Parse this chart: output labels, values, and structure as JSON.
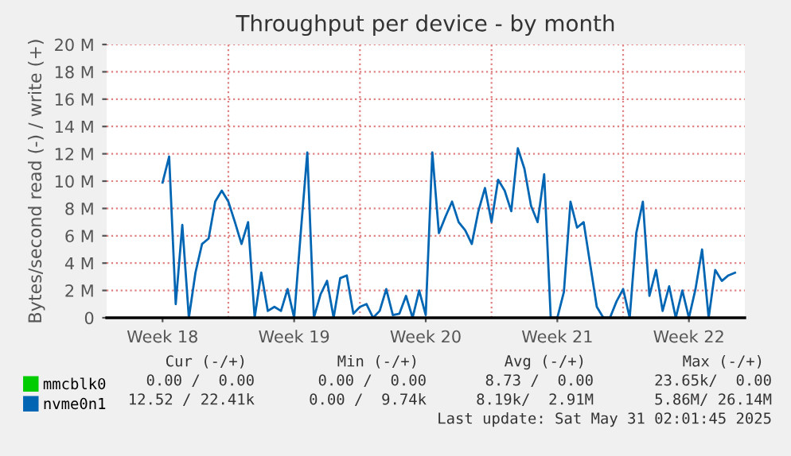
{
  "chart_data": {
    "type": "line",
    "title": "Throughput per device - by month",
    "ylabel": "Bytes/second read (-) / write (+)",
    "categories": [
      null,
      null,
      null,
      null,
      null,
      null,
      null,
      null,
      "Week 18",
      null,
      null,
      null,
      null,
      null,
      null,
      null,
      null,
      null,
      null,
      null,
      null,
      null,
      null,
      null,
      null,
      null,
      null,
      null,
      "Week 19",
      null,
      null,
      null,
      null,
      null,
      null,
      null,
      null,
      null,
      null,
      null,
      null,
      null,
      null,
      null,
      null,
      null,
      null,
      null,
      "Week 20",
      null,
      null,
      null,
      null,
      null,
      null,
      null,
      null,
      null,
      null,
      null,
      null,
      null,
      null,
      null,
      null,
      null,
      null,
      null,
      "Week 21",
      null,
      null,
      null,
      null,
      null,
      null,
      null,
      null,
      null,
      null,
      null,
      null,
      null,
      null,
      null,
      null,
      null,
      null,
      null,
      "Week 22",
      null,
      null,
      null,
      null,
      null,
      null,
      null,
      null
    ],
    "ylim": [
      0,
      20000000
    ],
    "yticks": [
      {
        "value": 0,
        "label": "0"
      },
      {
        "value": 2000000,
        "label": "2 M"
      },
      {
        "value": 4000000,
        "label": "4 M"
      },
      {
        "value": 6000000,
        "label": "6 M"
      },
      {
        "value": 8000000,
        "label": "8 M"
      },
      {
        "value": 10000000,
        "label": "10 M"
      },
      {
        "value": 12000000,
        "label": "12 M"
      },
      {
        "value": 14000000,
        "label": "14 M"
      },
      {
        "value": 16000000,
        "label": "16 M"
      },
      {
        "value": 18000000,
        "label": "18 M"
      },
      {
        "value": 20000000,
        "label": "20 M"
      }
    ],
    "grid": true,
    "legend": "bottom",
    "series": [
      {
        "name": "mmcblk0",
        "color": "#00cc00",
        "values": [
          null,
          null,
          null,
          null,
          null,
          null,
          null,
          null,
          null,
          null,
          null,
          null,
          null,
          null,
          null,
          null,
          null,
          null,
          null,
          null,
          null,
          null,
          null,
          null,
          null,
          null,
          null,
          null,
          null,
          null,
          null,
          null,
          null,
          null,
          null,
          null,
          null,
          null,
          null,
          null,
          null,
          null,
          null,
          null,
          null,
          null,
          null,
          null,
          null,
          null,
          null,
          null,
          null,
          null,
          null,
          null,
          null,
          null,
          null,
          null,
          null,
          null,
          null,
          null,
          null,
          null,
          null,
          null,
          null,
          null,
          null,
          null,
          null,
          null,
          null,
          null,
          null,
          null,
          null,
          null,
          null,
          null,
          null,
          null,
          null,
          null,
          null,
          null,
          null,
          null,
          null,
          null,
          null,
          null,
          null,
          null,
          null
        ]
      },
      {
        "name": "nvme0n1",
        "color": "#0066b3",
        "values": [
          null,
          null,
          null,
          null,
          null,
          null,
          null,
          null,
          9900000,
          11800000,
          1000000,
          6800000,
          0,
          3300000,
          5400000,
          5800000,
          8500000,
          9300000,
          8500000,
          7000000,
          5400000,
          7000000,
          0,
          3300000,
          500000,
          800000,
          500000,
          2100000,
          0,
          6200000,
          12100000,
          0,
          1700000,
          2700000,
          0,
          2900000,
          3100000,
          300000,
          800000,
          1000000,
          0,
          500000,
          2100000,
          200000,
          300000,
          1600000,
          0,
          2000000,
          200000,
          12100000,
          6200000,
          7400000,
          8500000,
          7000000,
          6400000,
          5400000,
          7800000,
          9500000,
          7000000,
          10100000,
          9300000,
          7800000,
          12400000,
          10900000,
          8200000,
          7000000,
          10500000,
          0,
          0,
          1900000,
          8500000,
          6600000,
          7000000,
          3900000,
          800000,
          0,
          0,
          1200000,
          2100000,
          0,
          6200000,
          8500000,
          1600000,
          3500000,
          500000,
          2300000,
          0,
          2000000,
          0,
          2100000,
          5000000,
          0,
          3500000,
          2700000,
          3100000,
          3300000,
          null
        ]
      }
    ],
    "annotations": [
      "Cur (-/+)",
      "Min (-/+)",
      "Avg (-/+)",
      "Max (-/+)",
      "0.00 /  0.00",
      "0.00 /  0.00",
      "8.73 /  0.00",
      "23.65k/  0.00",
      "12.52 / 22.41k",
      "0.00 /  9.74k",
      "8.19k/  2.91M",
      "5.86M/ 26.14M",
      "Last update: Sat May 31 02:01:45 2025"
    ]
  }
}
